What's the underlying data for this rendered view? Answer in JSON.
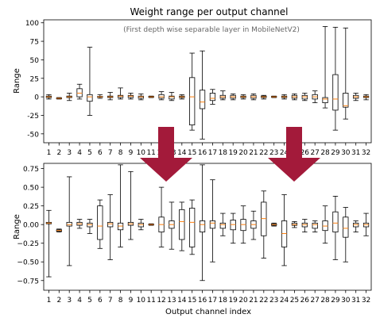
{
  "figure": {
    "title": "Weight range per output channel",
    "annotation": "(First depth wise separable layer in MobileNetV2)",
    "xlabel": "Output channel index",
    "colors": {
      "box": "#000000",
      "median": "#ff7f0e",
      "arrow": "#a31a3a"
    }
  },
  "chart_data": [
    {
      "type": "box",
      "title": "Weight range per output channel",
      "annotation": "(First depth wise separable layer in MobileNetV2)",
      "xlabel": "",
      "ylabel": "Range",
      "ylim": [
        -62,
        104
      ],
      "yticks": [
        -50,
        -25,
        0,
        25,
        50,
        75,
        100
      ],
      "categories": [
        "1",
        "2",
        "3",
        "4",
        "5",
        "6",
        "7",
        "8",
        "9",
        "10",
        "11",
        "12",
        "13",
        "14",
        "15",
        "16",
        "17",
        "18",
        "19",
        "20",
        "21",
        "22",
        "23",
        "24",
        "25",
        "26",
        "27",
        "28",
        "29",
        "30",
        "31",
        "32"
      ],
      "boxes": [
        {
          "min": -3,
          "q1": -1,
          "median": 0,
          "q3": 1,
          "max": 3
        },
        {
          "min": -3,
          "q1": -2.5,
          "median": -2,
          "q3": -1.5,
          "max": -1
        },
        {
          "min": -5,
          "q1": -1,
          "median": 0,
          "q3": 1,
          "max": 5
        },
        {
          "min": -3,
          "q1": 0,
          "median": 5,
          "q3": 11,
          "max": 17
        },
        {
          "min": -25,
          "q1": -6,
          "median": 0,
          "q3": 3,
          "max": 67
        },
        {
          "min": -2,
          "q1": -0.5,
          "median": 0,
          "q3": 0.5,
          "max": 3
        },
        {
          "min": -4,
          "q1": -1,
          "median": 0,
          "q3": 1,
          "max": 6
        },
        {
          "min": -3,
          "q1": -1,
          "median": 1,
          "q3": 2,
          "max": 12
        },
        {
          "min": -3,
          "q1": -1,
          "median": 1,
          "q3": 2,
          "max": 5
        },
        {
          "min": -4,
          "q1": -2,
          "median": 0,
          "q3": 1,
          "max": 4
        },
        {
          "min": -1,
          "q1": -0.5,
          "median": 0,
          "q3": 0.5,
          "max": 1
        },
        {
          "min": -4,
          "q1": -2,
          "median": 0,
          "q3": 3,
          "max": 7
        },
        {
          "min": -5,
          "q1": -3,
          "median": 0,
          "q3": 1,
          "max": 6
        },
        {
          "min": -3,
          "q1": -1,
          "median": 0,
          "q3": 1,
          "max": 3
        },
        {
          "min": -45,
          "q1": -38,
          "median": 0,
          "q3": 26,
          "max": 59
        },
        {
          "min": -57,
          "q1": -16,
          "median": -7,
          "q3": 9,
          "max": 62
        },
        {
          "min": -10,
          "q1": -5,
          "median": -2,
          "q3": 5,
          "max": 10
        },
        {
          "min": -4,
          "q1": -2,
          "median": 0,
          "q3": 2,
          "max": 8
        },
        {
          "min": -4,
          "q1": -2,
          "median": 0,
          "q3": 2,
          "max": 4
        },
        {
          "min": -3,
          "q1": -1,
          "median": 0,
          "q3": 1,
          "max": 3
        },
        {
          "min": -4,
          "q1": -2,
          "median": 0,
          "q3": 2,
          "max": 4
        },
        {
          "min": -3,
          "q1": -1,
          "median": 0,
          "q3": 1,
          "max": 2
        },
        {
          "min": -1,
          "q1": -0.5,
          "median": 0,
          "q3": 0.5,
          "max": 1
        },
        {
          "min": -3,
          "q1": -1,
          "median": 0,
          "q3": 1,
          "max": 3
        },
        {
          "min": -4,
          "q1": -2,
          "median": 0,
          "q3": 2,
          "max": 4
        },
        {
          "min": -5,
          "q1": -3,
          "median": 0,
          "q3": 2,
          "max": 5
        },
        {
          "min": -8,
          "q1": -3,
          "median": 0,
          "q3": 3,
          "max": 8
        },
        {
          "min": -15,
          "q1": -8,
          "median": -3,
          "q3": -1,
          "max": 95
        },
        {
          "min": -45,
          "q1": -18,
          "median": -3,
          "q3": 30,
          "max": 94
        },
        {
          "min": -30,
          "q1": -14,
          "median": -12,
          "q3": 5,
          "max": 93
        },
        {
          "min": -5,
          "q1": -2,
          "median": 0,
          "q3": 2,
          "max": 5
        },
        {
          "min": -4,
          "q1": -1,
          "median": 0,
          "q3": 1,
          "max": 3
        }
      ]
    },
    {
      "type": "box",
      "title": "",
      "xlabel": "Output channel index",
      "ylabel": "Range",
      "ylim": [
        -0.88,
        0.82
      ],
      "yticks": [
        -0.75,
        -0.5,
        -0.25,
        0.0,
        0.25,
        0.5,
        0.75
      ],
      "yticklabels": [
        "−0.75",
        "−0.50",
        "−0.25",
        "0.00",
        "0.25",
        "0.50",
        "0.75"
      ],
      "categories": [
        "1",
        "2",
        "3",
        "4",
        "5",
        "6",
        "7",
        "8",
        "9",
        "10",
        "11",
        "12",
        "13",
        "14",
        "15",
        "16",
        "17",
        "18",
        "19",
        "20",
        "21",
        "22",
        "23",
        "24",
        "25",
        "26",
        "27",
        "28",
        "29",
        "30",
        "31",
        "32"
      ],
      "boxes": [
        {
          "min": -0.7,
          "q1": 0.01,
          "median": 0.02,
          "q3": 0.03,
          "max": 0.19
        },
        {
          "min": -0.1,
          "q1": -0.09,
          "median": -0.08,
          "q3": -0.07,
          "max": -0.06
        },
        {
          "min": -0.55,
          "q1": -0.02,
          "median": 0.0,
          "q3": 0.03,
          "max": 0.64
        },
        {
          "min": -0.05,
          "q1": -0.01,
          "median": 0.01,
          "q3": 0.03,
          "max": 0.07
        },
        {
          "min": -0.12,
          "q1": -0.03,
          "median": 0.0,
          "q3": 0.02,
          "max": 0.07
        },
        {
          "min": -0.32,
          "q1": -0.2,
          "median": -0.02,
          "q3": 0.25,
          "max": 0.33
        },
        {
          "min": -0.47,
          "q1": -0.03,
          "median": 0.01,
          "q3": 0.03,
          "max": 0.4
        },
        {
          "min": -0.3,
          "q1": -0.07,
          "median": -0.02,
          "q3": 0.02,
          "max": 0.8
        },
        {
          "min": -0.2,
          "q1": -0.01,
          "median": 0.01,
          "q3": 0.03,
          "max": 0.71
        },
        {
          "min": -0.07,
          "q1": -0.03,
          "median": 0.0,
          "q3": 0.02,
          "max": 0.07
        },
        {
          "min": -0.01,
          "q1": -0.005,
          "median": 0.0,
          "q3": 0.005,
          "max": 0.01
        },
        {
          "min": -0.3,
          "q1": -0.1,
          "median": 0.0,
          "q3": 0.1,
          "max": 0.5
        },
        {
          "min": -0.33,
          "q1": -0.05,
          "median": 0.0,
          "q3": 0.05,
          "max": 0.3
        },
        {
          "min": -0.35,
          "q1": -0.2,
          "median": 0.04,
          "q3": 0.2,
          "max": 0.3
        },
        {
          "min": -0.4,
          "q1": -0.3,
          "median": 0.03,
          "q3": 0.22,
          "max": 0.33
        },
        {
          "min": -0.75,
          "q1": -0.1,
          "median": 0.0,
          "q3": 0.05,
          "max": 0.8
        },
        {
          "min": -0.5,
          "q1": -0.05,
          "median": 0.02,
          "q3": 0.05,
          "max": 0.6
        },
        {
          "min": -0.15,
          "q1": -0.05,
          "median": 0.0,
          "q3": 0.02,
          "max": 0.15
        },
        {
          "min": -0.25,
          "q1": -0.07,
          "median": 0.0,
          "q3": 0.06,
          "max": 0.15
        },
        {
          "min": -0.25,
          "q1": -0.08,
          "median": 0.0,
          "q3": 0.07,
          "max": 0.25
        },
        {
          "min": -0.2,
          "q1": -0.05,
          "median": 0.0,
          "q3": 0.05,
          "max": 0.18
        },
        {
          "min": -0.45,
          "q1": -0.15,
          "median": 0.08,
          "q3": 0.3,
          "max": 0.45
        },
        {
          "min": -0.02,
          "q1": -0.01,
          "median": 0.0,
          "q3": 0.01,
          "max": 0.02
        },
        {
          "min": -0.55,
          "q1": -0.3,
          "median": -0.12,
          "q3": 0.05,
          "max": 0.4
        },
        {
          "min": -0.04,
          "q1": -0.01,
          "median": 0.0,
          "q3": 0.02,
          "max": 0.04
        },
        {
          "min": -0.1,
          "q1": -0.03,
          "median": 0.0,
          "q3": 0.02,
          "max": 0.07
        },
        {
          "min": -0.1,
          "q1": -0.05,
          "median": 0.0,
          "q3": 0.02,
          "max": 0.05
        },
        {
          "min": -0.25,
          "q1": -0.08,
          "median": -0.02,
          "q3": 0.05,
          "max": 0.25
        },
        {
          "min": -0.47,
          "q1": -0.1,
          "median": 0.02,
          "q3": 0.17,
          "max": 0.38
        },
        {
          "min": -0.5,
          "q1": -0.17,
          "median": -0.05,
          "q3": 0.1,
          "max": 0.23
        },
        {
          "min": -0.1,
          "q1": -0.03,
          "median": 0.0,
          "q3": 0.02,
          "max": 0.05
        },
        {
          "min": -0.15,
          "q1": -0.03,
          "median": 0.0,
          "q3": 0.02,
          "max": 0.15
        }
      ]
    }
  ]
}
